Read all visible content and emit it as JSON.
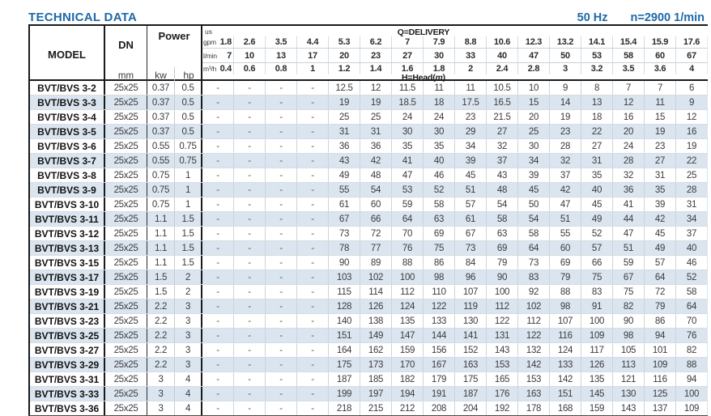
{
  "page": {
    "title": "TECHNICAL DATA",
    "frequency": "50 Hz",
    "speed": "n=2900 1/min"
  },
  "table": {
    "header": {
      "model_label": "MODEL",
      "dn_label": "DN",
      "dn_unit": "mm",
      "power_label": "Power",
      "kw_label": "kw",
      "hp_label": "hp",
      "us_label": "us",
      "gpm_label": "gpm",
      "lmin_label": "l/min",
      "m3h_label": "m³/h",
      "delivery_label": "Q=DELIVERY",
      "head_prefix": "H=Head(",
      "head_unit": "m",
      "head_suffix": ")"
    },
    "delivery": {
      "us_gpm": [
        "1.8",
        "2.6",
        "3.5",
        "4.4",
        "5.3",
        "6.2",
        "7",
        "7.9",
        "8.8",
        "10.6",
        "12.3",
        "13.2",
        "14.1",
        "15.4",
        "15.9",
        "17.6"
      ],
      "l_min": [
        "7",
        "10",
        "13",
        "17",
        "20",
        "23",
        "27",
        "30",
        "33",
        "40",
        "47",
        "50",
        "53",
        "58",
        "60",
        "67"
      ],
      "m3_h": [
        "0.4",
        "0.6",
        "0.8",
        "1",
        "1.2",
        "1.4",
        "1.6",
        "1.8",
        "2",
        "2.4",
        "2.8",
        "3",
        "3.2",
        "3.5",
        "3.6",
        "4"
      ]
    },
    "rows": [
      {
        "model": "BVT/BVS 3-2",
        "dn": "25x25",
        "kw": "0.37",
        "hp": "0.5",
        "head": [
          "-",
          "-",
          "-",
          "-",
          "12.5",
          "12",
          "11.5",
          "11",
          "11",
          "10.5",
          "10",
          "9",
          "8",
          "7",
          "7",
          "6"
        ]
      },
      {
        "model": "BVT/BVS 3-3",
        "dn": "25x25",
        "kw": "0.37",
        "hp": "0.5",
        "head": [
          "-",
          "-",
          "-",
          "-",
          "19",
          "19",
          "18.5",
          "18",
          "17.5",
          "16.5",
          "15",
          "14",
          "13",
          "12",
          "11",
          "9"
        ]
      },
      {
        "model": "BVT/BVS 3-4",
        "dn": "25x25",
        "kw": "0.37",
        "hp": "0.5",
        "head": [
          "-",
          "-",
          "-",
          "-",
          "25",
          "25",
          "24",
          "24",
          "23",
          "21.5",
          "20",
          "19",
          "18",
          "16",
          "15",
          "12"
        ]
      },
      {
        "model": "BVT/BVS 3-5",
        "dn": "25x25",
        "kw": "0.37",
        "hp": "0.5",
        "head": [
          "-",
          "-",
          "-",
          "-",
          "31",
          "31",
          "30",
          "30",
          "29",
          "27",
          "25",
          "23",
          "22",
          "20",
          "19",
          "16"
        ]
      },
      {
        "model": "BVT/BVS 3-6",
        "dn": "25x25",
        "kw": "0.55",
        "hp": "0.75",
        "head": [
          "-",
          "-",
          "-",
          "-",
          "36",
          "36",
          "35",
          "35",
          "34",
          "32",
          "30",
          "28",
          "27",
          "24",
          "23",
          "19"
        ]
      },
      {
        "model": "BVT/BVS 3-7",
        "dn": "25x25",
        "kw": "0.55",
        "hp": "0.75",
        "head": [
          "-",
          "-",
          "-",
          "-",
          "43",
          "42",
          "41",
          "40",
          "39",
          "37",
          "34",
          "32",
          "31",
          "28",
          "27",
          "22"
        ]
      },
      {
        "model": "BVT/BVS 3-8",
        "dn": "25x25",
        "kw": "0.75",
        "hp": "1",
        "head": [
          "-",
          "-",
          "-",
          "-",
          "49",
          "48",
          "47",
          "46",
          "45",
          "43",
          "39",
          "37",
          "35",
          "32",
          "31",
          "25"
        ]
      },
      {
        "model": "BVT/BVS 3-9",
        "dn": "25x25",
        "kw": "0.75",
        "hp": "1",
        "head": [
          "-",
          "-",
          "-",
          "-",
          "55",
          "54",
          "53",
          "52",
          "51",
          "48",
          "45",
          "42",
          "40",
          "36",
          "35",
          "28"
        ]
      },
      {
        "model": "BVT/BVS 3-10",
        "dn": "25x25",
        "kw": "0.75",
        "hp": "1",
        "head": [
          "-",
          "-",
          "-",
          "-",
          "61",
          "60",
          "59",
          "58",
          "57",
          "54",
          "50",
          "47",
          "45",
          "41",
          "39",
          "31"
        ]
      },
      {
        "model": "BVT/BVS 3-11",
        "dn": "25x25",
        "kw": "1.1",
        "hp": "1.5",
        "head": [
          "-",
          "-",
          "-",
          "-",
          "67",
          "66",
          "64",
          "63",
          "61",
          "58",
          "54",
          "51",
          "49",
          "44",
          "42",
          "34"
        ]
      },
      {
        "model": "BVT/BVS 3-12",
        "dn": "25x25",
        "kw": "1.1",
        "hp": "1.5",
        "head": [
          "-",
          "-",
          "-",
          "-",
          "73",
          "72",
          "70",
          "69",
          "67",
          "63",
          "58",
          "55",
          "52",
          "47",
          "45",
          "37"
        ]
      },
      {
        "model": "BVT/BVS 3-13",
        "dn": "25x25",
        "kw": "1.1",
        "hp": "1.5",
        "head": [
          "-",
          "-",
          "-",
          "-",
          "78",
          "77",
          "76",
          "75",
          "73",
          "69",
          "64",
          "60",
          "57",
          "51",
          "49",
          "40"
        ]
      },
      {
        "model": "BVT/BVS 3-15",
        "dn": "25x25",
        "kw": "1.1",
        "hp": "1.5",
        "head": [
          "-",
          "-",
          "-",
          "-",
          "90",
          "89",
          "88",
          "86",
          "84",
          "79",
          "73",
          "69",
          "66",
          "59",
          "57",
          "46"
        ]
      },
      {
        "model": "BVT/BVS 3-17",
        "dn": "25x25",
        "kw": "1.5",
        "hp": "2",
        "head": [
          "-",
          "-",
          "-",
          "-",
          "103",
          "102",
          "100",
          "98",
          "96",
          "90",
          "83",
          "79",
          "75",
          "67",
          "64",
          "52"
        ]
      },
      {
        "model": "BVT/BVS 3-19",
        "dn": "25x25",
        "kw": "1.5",
        "hp": "2",
        "head": [
          "-",
          "-",
          "-",
          "-",
          "115",
          "114",
          "112",
          "110",
          "107",
          "100",
          "92",
          "88",
          "83",
          "75",
          "72",
          "58"
        ]
      },
      {
        "model": "BVT/BVS 3-21",
        "dn": "25x25",
        "kw": "2.2",
        "hp": "3",
        "head": [
          "-",
          "-",
          "-",
          "-",
          "128",
          "126",
          "124",
          "122",
          "119",
          "112",
          "102",
          "98",
          "91",
          "82",
          "79",
          "64"
        ]
      },
      {
        "model": "BVT/BVS 3-23",
        "dn": "25x25",
        "kw": "2.2",
        "hp": "3",
        "head": [
          "-",
          "-",
          "-",
          "-",
          "140",
          "138",
          "135",
          "133",
          "130",
          "122",
          "112",
          "107",
          "100",
          "90",
          "86",
          "70"
        ]
      },
      {
        "model": "BVT/BVS 3-25",
        "dn": "25x25",
        "kw": "2.2",
        "hp": "3",
        "head": [
          "-",
          "-",
          "-",
          "-",
          "151",
          "149",
          "147",
          "144",
          "141",
          "131",
          "122",
          "116",
          "109",
          "98",
          "94",
          "76"
        ]
      },
      {
        "model": "BVT/BVS 3-27",
        "dn": "25x25",
        "kw": "2.2",
        "hp": "3",
        "head": [
          "-",
          "-",
          "-",
          "-",
          "164",
          "162",
          "159",
          "156",
          "152",
          "143",
          "132",
          "124",
          "117",
          "105",
          "101",
          "82"
        ]
      },
      {
        "model": "BVT/BVS 3-29",
        "dn": "25x25",
        "kw": "2.2",
        "hp": "3",
        "head": [
          "-",
          "-",
          "-",
          "-",
          "175",
          "173",
          "170",
          "167",
          "163",
          "153",
          "142",
          "133",
          "126",
          "113",
          "109",
          "88"
        ]
      },
      {
        "model": "BVT/BVS 3-31",
        "dn": "25x25",
        "kw": "3",
        "hp": "4",
        "head": [
          "-",
          "-",
          "-",
          "-",
          "187",
          "185",
          "182",
          "179",
          "175",
          "165",
          "153",
          "142",
          "135",
          "121",
          "116",
          "94"
        ]
      },
      {
        "model": "BVT/BVS 3-33",
        "dn": "25x25",
        "kw": "3",
        "hp": "4",
        "head": [
          "-",
          "-",
          "-",
          "-",
          "199",
          "197",
          "194",
          "191",
          "187",
          "176",
          "163",
          "151",
          "145",
          "130",
          "125",
          "100"
        ]
      },
      {
        "model": "BVT/BVS 3-36",
        "dn": "25x25",
        "kw": "3",
        "hp": "4",
        "head": [
          "-",
          "-",
          "-",
          "-",
          "218",
          "215",
          "212",
          "208",
          "204",
          "192",
          "178",
          "168",
          "159",
          "143",
          "137",
          "109"
        ]
      }
    ]
  }
}
